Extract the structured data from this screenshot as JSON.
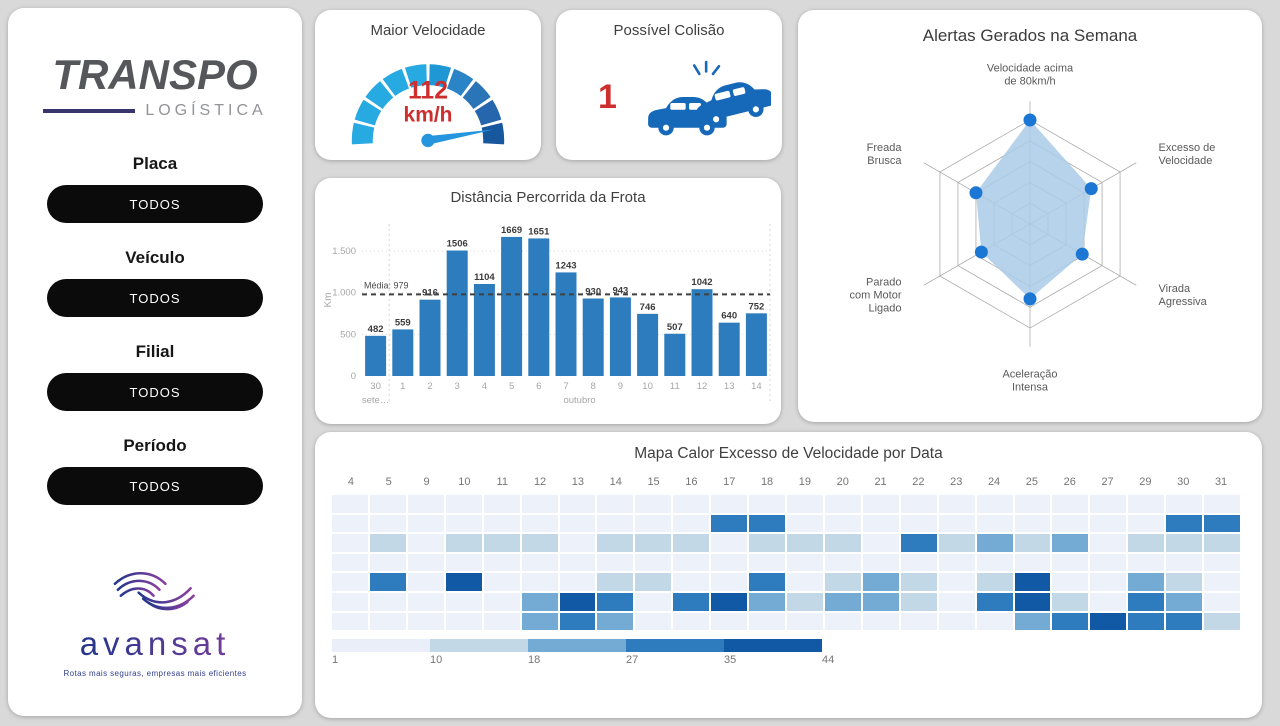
{
  "app": {
    "background": "#d9d9d9"
  },
  "sidebar": {
    "logo": {
      "name": "TRANSPO",
      "subtitle": "LOGÍSTICA",
      "accent_color": "#37356b",
      "text_color": "#56575a"
    },
    "filters": [
      {
        "label": "Placa",
        "value": "TODOS"
      },
      {
        "label": "Veículo",
        "value": "TODOS"
      },
      {
        "label": "Filial",
        "value": "TODOS"
      },
      {
        "label": "Período",
        "value": "TODOS"
      }
    ],
    "footer": {
      "brand": "avansat",
      "tagline": "Rotas mais seguras, empresas mais eficientes",
      "gradient_start": "#23368c",
      "gradient_end": "#8a3f9e"
    }
  },
  "kpi": {
    "speed": {
      "title": "Maior Velocidade",
      "value": "112",
      "unit": "km/h",
      "value_num": 112,
      "gauge_max": 120,
      "value_color": "#cf2e2e",
      "needle_color": "#2596dd",
      "gauge_colors": [
        "#27a9e1",
        "#27a9e1",
        "#27a9e1",
        "#27a9e1",
        "#27a9e1",
        "#1f97d4",
        "#2a84c5",
        "#2a74b8",
        "#2566ad",
        "#17579d"
      ]
    },
    "collision": {
      "title": "Possível Colisão",
      "value": "1",
      "value_color": "#cf2e2e",
      "icon_color": "#1668b8"
    }
  },
  "chart_data": [
    {
      "id": "alerts-radar",
      "type": "radar",
      "title": "Alertas Gerados na Semana",
      "axes": [
        [
          "Velocidade acima",
          "de 80km/h"
        ],
        [
          "Excesso de",
          "Velocidade"
        ],
        [
          "Virada",
          "Agressiva"
        ],
        [
          "Aceleração",
          "Intensa"
        ],
        [
          "Parado",
          "com Motor",
          "Ligado"
        ],
        [
          "Freada",
          "Brusca"
        ]
      ],
      "values": [
        5,
        3.4,
        2.9,
        3.6,
        2.7,
        3
      ],
      "max": 5,
      "rings": 5,
      "fill_color": "#a9cbe8",
      "point_color": "#1b76d4",
      "grid_color": "#a0a0a0",
      "label_color": "#595959",
      "legend_position": "none",
      "grid": true
    },
    {
      "id": "distance-bar",
      "type": "bar",
      "title": "Distância Percorrida da Frota",
      "categories": [
        "30",
        "1",
        "2",
        "3",
        "4",
        "5",
        "6",
        "7",
        "8",
        "9",
        "10",
        "11",
        "12",
        "13",
        "14"
      ],
      "month_labels": [
        {
          "text": "sete…",
          "index": 0
        },
        {
          "text": "outubro",
          "index": 7.5
        }
      ],
      "values": [
        482,
        559,
        916,
        1506,
        1104,
        1669,
        1651,
        1243,
        930,
        943,
        746,
        507,
        1042,
        640,
        752
      ],
      "average_line": {
        "label": "Média: 979",
        "value": 979
      },
      "xlabel": "",
      "ylabel": "Km",
      "ytick_values": [
        0,
        500,
        1000,
        1500
      ],
      "ytick_labels": [
        "0",
        "500",
        "1.000",
        "1.500"
      ],
      "ylim": [
        0,
        1800
      ],
      "bar_color": "#2d7cbd",
      "value_label_color": "#3b3b3b",
      "axis_color": "#a6a6a6",
      "grid": true
    },
    {
      "id": "speeding-heatmap",
      "type": "heatmap",
      "title": "Mapa Calor Excesso de Velocidade por Data",
      "columns": [
        "4",
        "5",
        "9",
        "10",
        "11",
        "12",
        "13",
        "14",
        "15",
        "16",
        "17",
        "18",
        "19",
        "20",
        "21",
        "22",
        "23",
        "24",
        "25",
        "26",
        "27",
        "29",
        "30",
        "31"
      ],
      "values": [
        [
          0,
          0,
          0,
          0,
          0,
          0,
          0,
          0,
          0,
          0,
          0,
          0,
          0,
          0,
          0,
          0,
          0,
          0,
          0,
          0,
          0,
          0,
          0,
          0
        ],
        [
          0,
          0,
          0,
          0,
          0,
          0,
          0,
          0,
          0,
          0,
          31,
          31,
          0,
          0,
          0,
          0,
          0,
          0,
          0,
          0,
          0,
          0,
          31,
          31
        ],
        [
          0,
          14,
          0,
          14,
          14,
          14,
          0,
          14,
          14,
          14,
          0,
          14,
          14,
          14,
          0,
          31,
          14,
          22,
          14,
          22,
          0,
          14,
          14,
          14
        ],
        [
          0,
          0,
          0,
          0,
          0,
          0,
          0,
          0,
          0,
          0,
          0,
          0,
          0,
          0,
          0,
          0,
          0,
          0,
          0,
          0,
          0,
          0,
          0,
          0
        ],
        [
          0,
          31,
          0,
          40,
          0,
          0,
          0,
          14,
          14,
          0,
          0,
          31,
          0,
          14,
          22,
          14,
          0,
          14,
          40,
          0,
          0,
          22,
          14,
          0
        ],
        [
          0,
          0,
          0,
          0,
          0,
          22,
          40,
          31,
          0,
          31,
          40,
          22,
          14,
          22,
          22,
          14,
          0,
          31,
          40,
          14,
          0,
          31,
          22,
          0
        ],
        [
          0,
          0,
          0,
          0,
          0,
          22,
          31,
          22,
          0,
          0,
          0,
          0,
          0,
          0,
          0,
          0,
          0,
          0,
          22,
          31,
          40,
          31,
          31,
          14
        ]
      ],
      "legend": {
        "ticks": [
          "1",
          "10",
          "18",
          "27",
          "35",
          "44"
        ],
        "tick_values": [
          1,
          10,
          18,
          27,
          35,
          44
        ],
        "colors": [
          "#e9eef8",
          "#c3d8e7",
          "#74abd4",
          "#2e7bbd",
          "#1259a5"
        ]
      },
      "empty_color": "#edf1f9",
      "header_color": "#757575"
    }
  ]
}
